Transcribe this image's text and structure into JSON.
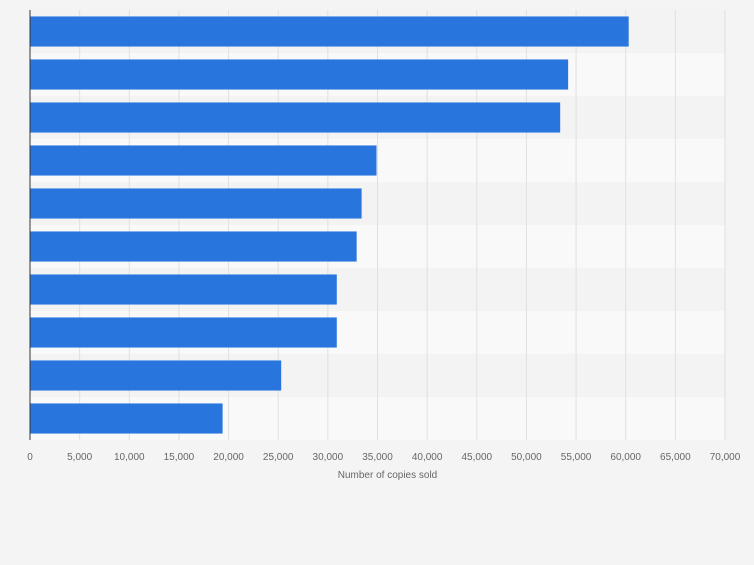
{
  "chart_data": {
    "type": "bar",
    "orientation": "horizontal",
    "categories": [
      "",
      "",
      "",
      "",
      "",
      "",
      "",
      "",
      "",
      ""
    ],
    "values": [
      60300,
      54200,
      53400,
      34900,
      33400,
      32900,
      30900,
      30900,
      25300,
      19400
    ],
    "xlabel": "Number of copies sold",
    "ylabel": "",
    "xlim": [
      0,
      70000
    ],
    "xticks": [
      0,
      5000,
      10000,
      15000,
      20000,
      25000,
      30000,
      35000,
      40000,
      45000,
      50000,
      55000,
      60000,
      65000,
      70000
    ],
    "xtick_labels": [
      "0",
      "5,000",
      "10,000",
      "15,000",
      "20,000",
      "25,000",
      "30,000",
      "35,000",
      "40,000",
      "45,000",
      "50,000",
      "55,000",
      "60,000",
      "65,000",
      "70,000"
    ],
    "grid": true,
    "bar_color": "#2876dd",
    "band_colors": [
      "#f3f3f3",
      "#f9f9f9"
    ],
    "gridline_color": "#e0e0e0",
    "axis_color": "#333333",
    "tick_label_color": "#666666"
  }
}
